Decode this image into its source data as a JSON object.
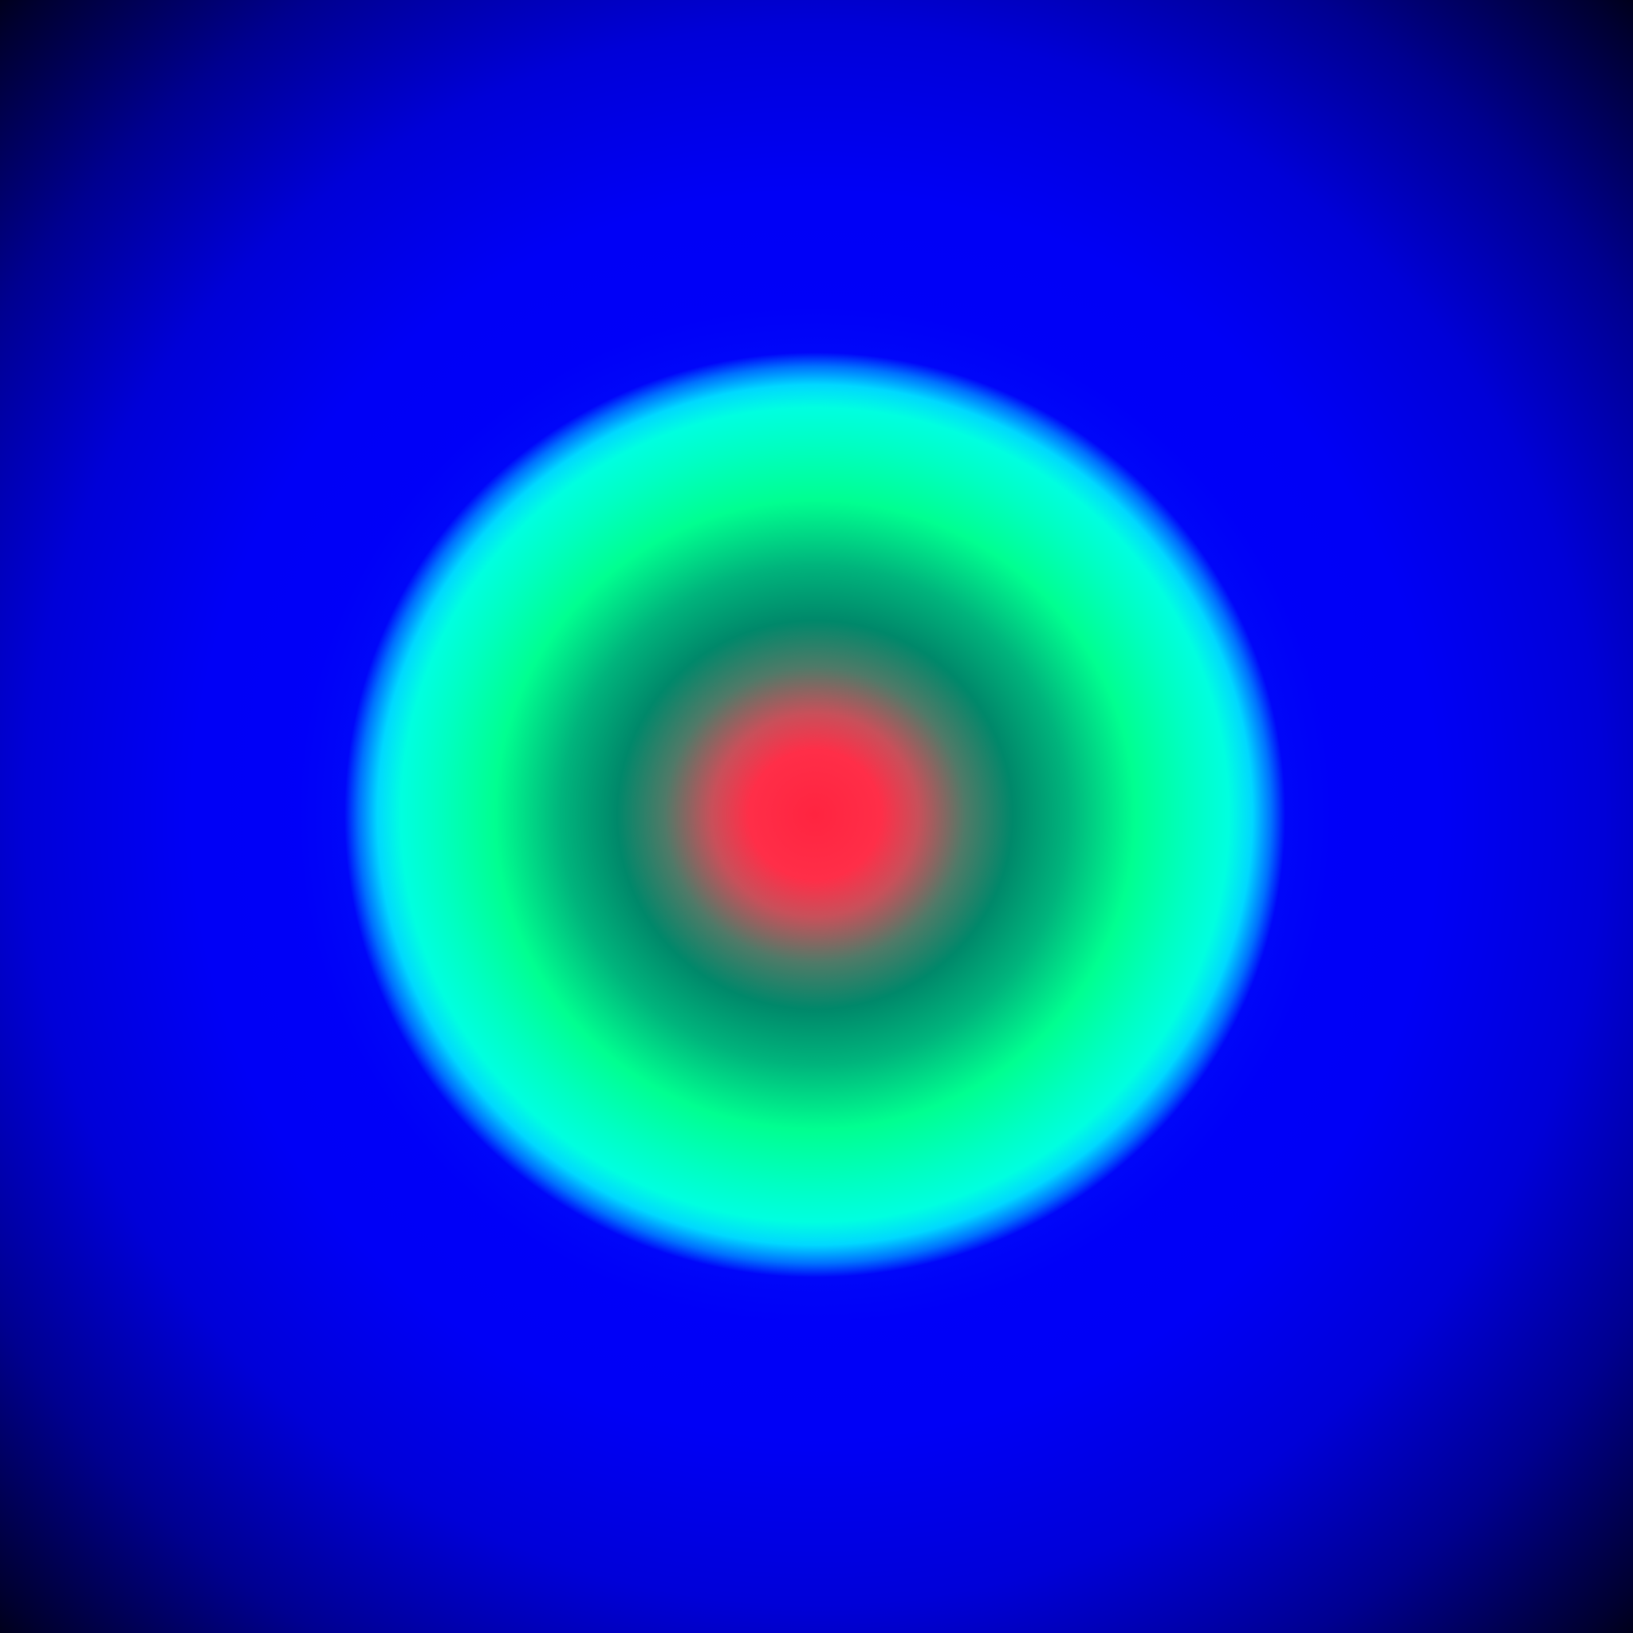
{
  "image": {
    "description_type": "abstract-gradient",
    "colors": {
      "background_edge": "#000000",
      "outer_field": "#0000ff",
      "ring_cyan": "#00ffe0",
      "ring_green": "#00ff90",
      "inner_teal": "#00886a",
      "core_red": "#ff2440"
    }
  }
}
